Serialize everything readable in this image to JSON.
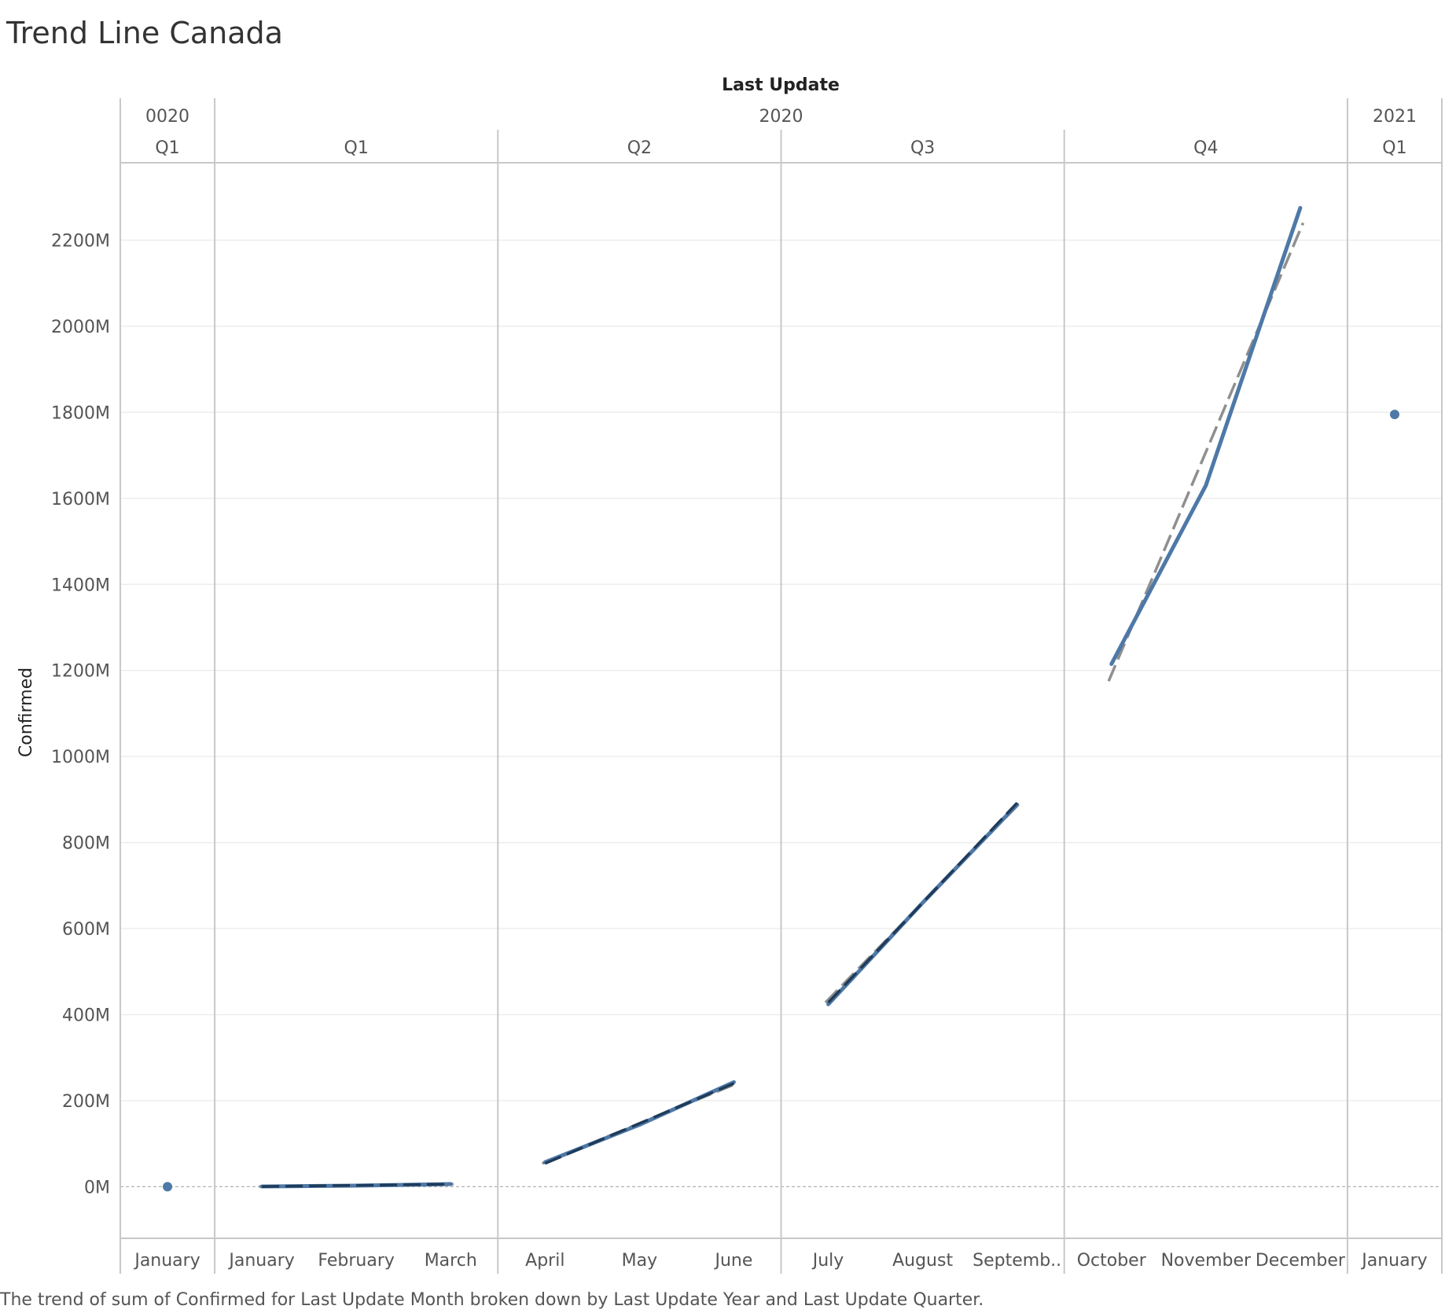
{
  "title": "Trend Line Canada",
  "caption": "The trend of sum of Confirmed for Last Update Month broken down by Last Update Year and Last Update Quarter.",
  "header_title": "Last Update",
  "colors": {
    "series": "#4e79a7",
    "trend": "#8f8f8f",
    "trend_dark": "#1f3b5a",
    "grid": "#ededed",
    "pane_divider": "#c8c8c8"
  },
  "chart_data": {
    "type": "line",
    "title": "Trend Line Canada",
    "xlabel": "Last Update",
    "ylabel": "Confirmed",
    "y_unit": "M",
    "ylim": [
      -120,
      2380
    ],
    "y_ticks": [
      0,
      200,
      400,
      600,
      800,
      1000,
      1200,
      1400,
      1600,
      1800,
      2000,
      2200
    ],
    "y_tick_labels": [
      "0M",
      "200M",
      "400M",
      "600M",
      "800M",
      "1000M",
      "1200M",
      "1400M",
      "1600M",
      "1800M",
      "2000M",
      "2200M"
    ],
    "grid": true,
    "trend_lines": true,
    "years": [
      {
        "label": "0020",
        "quarters": [
          {
            "label": "Q1",
            "months": [
              "January"
            ]
          }
        ]
      },
      {
        "label": "2020",
        "quarters": [
          {
            "label": "Q1",
            "months": [
              "January",
              "February",
              "March"
            ]
          },
          {
            "label": "Q2",
            "months": [
              "April",
              "May",
              "June"
            ]
          },
          {
            "label": "Q3",
            "months": [
              "July",
              "August",
              "Septemb.."
            ]
          },
          {
            "label": "Q4",
            "months": [
              "October",
              "November",
              "December"
            ]
          }
        ]
      },
      {
        "label": "2021",
        "quarters": [
          {
            "label": "Q1",
            "months": [
              "January"
            ]
          }
        ]
      }
    ],
    "series": [
      {
        "pane": "0020-Q1",
        "values": [
          0
        ]
      },
      {
        "pane": "2020-Q1",
        "values": [
          0.5,
          2.5,
          6
        ]
      },
      {
        "pane": "2020-Q2",
        "values": [
          57,
          144,
          243
        ]
      },
      {
        "pane": "2020-Q3",
        "values": [
          424,
          660,
          888
        ]
      },
      {
        "pane": "2020-Q4",
        "values": [
          1215,
          1630,
          2275
        ]
      },
      {
        "pane": "2021-Q1",
        "values": [
          1795
        ]
      }
    ],
    "trends": [
      {
        "pane": "2020-Q1",
        "start": 0.3,
        "end": 5.8
      },
      {
        "pane": "2020-Q2",
        "start": 54,
        "end": 240
      },
      {
        "pane": "2020-Q3",
        "start": 428,
        "end": 892
      },
      {
        "pane": "2020-Q4",
        "start": 1175,
        "end": 2240
      }
    ]
  }
}
